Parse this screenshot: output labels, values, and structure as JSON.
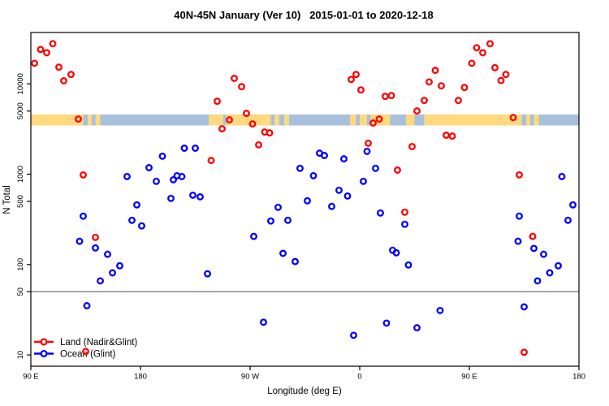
{
  "chart_data": {
    "type": "scatter",
    "title": "40N-45N January (Ver 10)   2015-01-01 to 2020-12-18",
    "xlabel": "Longitude (deg E)",
    "ylabel": "N Total",
    "x_axis": {
      "min": 90,
      "max": 540,
      "note": "axis wraps eastward from 90E around the globe to 180 again (450 deg span)",
      "ticks": [
        {
          "deg": 90,
          "label": "90 E"
        },
        {
          "deg": 180,
          "label": "180"
        },
        {
          "deg": 270,
          "label": "90 W"
        },
        {
          "deg": 360,
          "label": "0"
        },
        {
          "deg": 450,
          "label": "90 E"
        },
        {
          "deg": 540,
          "label": "180"
        }
      ]
    },
    "y_axis": {
      "scale": "log",
      "min": 7.5,
      "max": 37000,
      "ticks": [
        {
          "value": 10,
          "label": "10"
        },
        {
          "value": 50,
          "label": "50"
        },
        {
          "value": 100,
          "label": "100"
        },
        {
          "value": 500,
          "label": "500"
        },
        {
          "value": 1000,
          "label": "1000"
        },
        {
          "value": 5000,
          "label": "5000"
        },
        {
          "value": 10000,
          "label": "10000"
        }
      ]
    },
    "reference_line": {
      "value": 50,
      "color": "#7f7f7f"
    },
    "map_band": {
      "n_top": 4600,
      "n_bottom": 3460,
      "land_color": "#ffd980",
      "ocean_color": "#a9c0dc",
      "segments": [
        {
          "from": 90,
          "to": 133,
          "type": "land"
        },
        {
          "from": 133,
          "to": 136.5,
          "type": "ocean"
        },
        {
          "from": 136.5,
          "to": 140,
          "type": "land"
        },
        {
          "from": 140,
          "to": 143,
          "type": "ocean"
        },
        {
          "from": 143,
          "to": 147,
          "type": "land"
        },
        {
          "from": 147,
          "to": 236,
          "type": "ocean"
        },
        {
          "from": 236,
          "to": 248,
          "type": "land"
        },
        {
          "from": 248,
          "to": 250,
          "type": "ocean"
        },
        {
          "from": 250,
          "to": 287,
          "type": "land"
        },
        {
          "from": 287,
          "to": 290,
          "type": "ocean"
        },
        {
          "from": 290,
          "to": 294,
          "type": "land"
        },
        {
          "from": 294,
          "to": 298,
          "type": "ocean"
        },
        {
          "from": 298,
          "to": 302,
          "type": "land"
        },
        {
          "from": 302,
          "to": 352,
          "type": "ocean"
        },
        {
          "from": 352,
          "to": 357,
          "type": "land"
        },
        {
          "from": 357,
          "to": 360,
          "type": "ocean"
        },
        {
          "from": 360,
          "to": 366,
          "type": "land"
        },
        {
          "from": 366,
          "to": 369,
          "type": "ocean"
        },
        {
          "from": 369,
          "to": 385,
          "type": "land"
        },
        {
          "from": 385,
          "to": 398,
          "type": "ocean"
        },
        {
          "from": 398,
          "to": 405,
          "type": "land"
        },
        {
          "from": 405,
          "to": 413,
          "type": "ocean"
        },
        {
          "from": 413,
          "to": 493,
          "type": "land"
        },
        {
          "from": 493,
          "to": 496.5,
          "type": "ocean"
        },
        {
          "from": 496.5,
          "to": 500,
          "type": "land"
        },
        {
          "from": 500,
          "to": 503,
          "type": "ocean"
        },
        {
          "from": 503,
          "to": 507,
          "type": "land"
        },
        {
          "from": 507,
          "to": 540,
          "type": "ocean"
        }
      ]
    },
    "series": [
      {
        "name": "Land (Nadir&Glint)",
        "color": "#ff0000",
        "points": [
          [
            98,
            24000
          ],
          [
            108,
            27800
          ],
          [
            103,
            22100
          ],
          [
            93,
            16900
          ],
          [
            113,
            15300
          ],
          [
            123,
            12700
          ],
          [
            117,
            10800
          ],
          [
            129,
            4080
          ],
          [
            133,
            982
          ],
          [
            143,
            200
          ],
          [
            135,
            10.9
          ],
          [
            243,
            6420
          ],
          [
            257,
            11500
          ],
          [
            263,
            9310
          ],
          [
            267,
            4710
          ],
          [
            253,
            3990
          ],
          [
            272,
            3600
          ],
          [
            247,
            3180
          ],
          [
            282,
            2930
          ],
          [
            286,
            2870
          ],
          [
            277,
            2110
          ],
          [
            238,
            1420
          ],
          [
            353,
            11200
          ],
          [
            357,
            12700
          ],
          [
            361,
            8570
          ],
          [
            381,
            7260
          ],
          [
            386,
            7410
          ],
          [
            376,
            4080
          ],
          [
            371,
            3680
          ],
          [
            367,
            2200
          ],
          [
            422,
            14100
          ],
          [
            417,
            10500
          ],
          [
            427,
            9500
          ],
          [
            413,
            6550
          ],
          [
            407,
            5010
          ],
          [
            431,
            2700
          ],
          [
            436,
            2640
          ],
          [
            403,
            2020
          ],
          [
            391,
            1110
          ],
          [
            397,
            380
          ],
          [
            446,
            9120
          ],
          [
            441,
            6550
          ],
          [
            456,
            25100
          ],
          [
            467,
            27800
          ],
          [
            461,
            22100
          ],
          [
            452,
            16900
          ],
          [
            471,
            15100
          ],
          [
            480,
            12700
          ],
          [
            476,
            10900
          ],
          [
            486,
            4240
          ],
          [
            491,
            982
          ],
          [
            502,
            205
          ],
          [
            495,
            10.7
          ]
        ]
      },
      {
        "name": "Ocean (Glint)",
        "color": "#0000ff",
        "points": [
          [
            130,
            181
          ],
          [
            143,
            153
          ],
          [
            153,
            130
          ],
          [
            163,
            97
          ],
          [
            157,
            81
          ],
          [
            147,
            66
          ],
          [
            136,
            35
          ],
          [
            133,
            343
          ],
          [
            169,
            942
          ],
          [
            173,
            309
          ],
          [
            177,
            458
          ],
          [
            187,
            1180
          ],
          [
            198,
            1580
          ],
          [
            216,
            1940
          ],
          [
            225,
            1940
          ],
          [
            193,
            834
          ],
          [
            207,
            867
          ],
          [
            210,
            962
          ],
          [
            214,
            942
          ],
          [
            205,
            540
          ],
          [
            223,
            586
          ],
          [
            229,
            562
          ],
          [
            181,
            268
          ],
          [
            235,
            79
          ],
          [
            281,
            23
          ],
          [
            297,
            133
          ],
          [
            307,
            108
          ],
          [
            311,
            1160
          ],
          [
            322,
            962
          ],
          [
            327,
            1710
          ],
          [
            331,
            1610
          ],
          [
            347,
            1480
          ],
          [
            343,
            664
          ],
          [
            350,
            574
          ],
          [
            317,
            507
          ],
          [
            337,
            440
          ],
          [
            293,
            430
          ],
          [
            287,
            303
          ],
          [
            301,
            309
          ],
          [
            273,
            205
          ],
          [
            355,
            16.5
          ],
          [
            366,
            1790
          ],
          [
            363,
            834
          ],
          [
            373,
            1160
          ],
          [
            377,
            372
          ],
          [
            387,
            144
          ],
          [
            390,
            135
          ],
          [
            382,
            22.5
          ],
          [
            397,
            279
          ],
          [
            400,
            99
          ],
          [
            407,
            20
          ],
          [
            426,
            31
          ],
          [
            490,
            181
          ],
          [
            503,
            151
          ],
          [
            511,
            130
          ],
          [
            523,
            97
          ],
          [
            516,
            81
          ],
          [
            506,
            66
          ],
          [
            495,
            34
          ],
          [
            491,
            343
          ],
          [
            526,
            942
          ],
          [
            531,
            309
          ],
          [
            535,
            458
          ]
        ]
      }
    ],
    "legend": {
      "position": "bottom-left",
      "items": [
        "Land (Nadir&Glint)",
        "Ocean (Glint)"
      ]
    },
    "colors": {
      "axis": "#000000",
      "background": "#ffffff"
    }
  }
}
